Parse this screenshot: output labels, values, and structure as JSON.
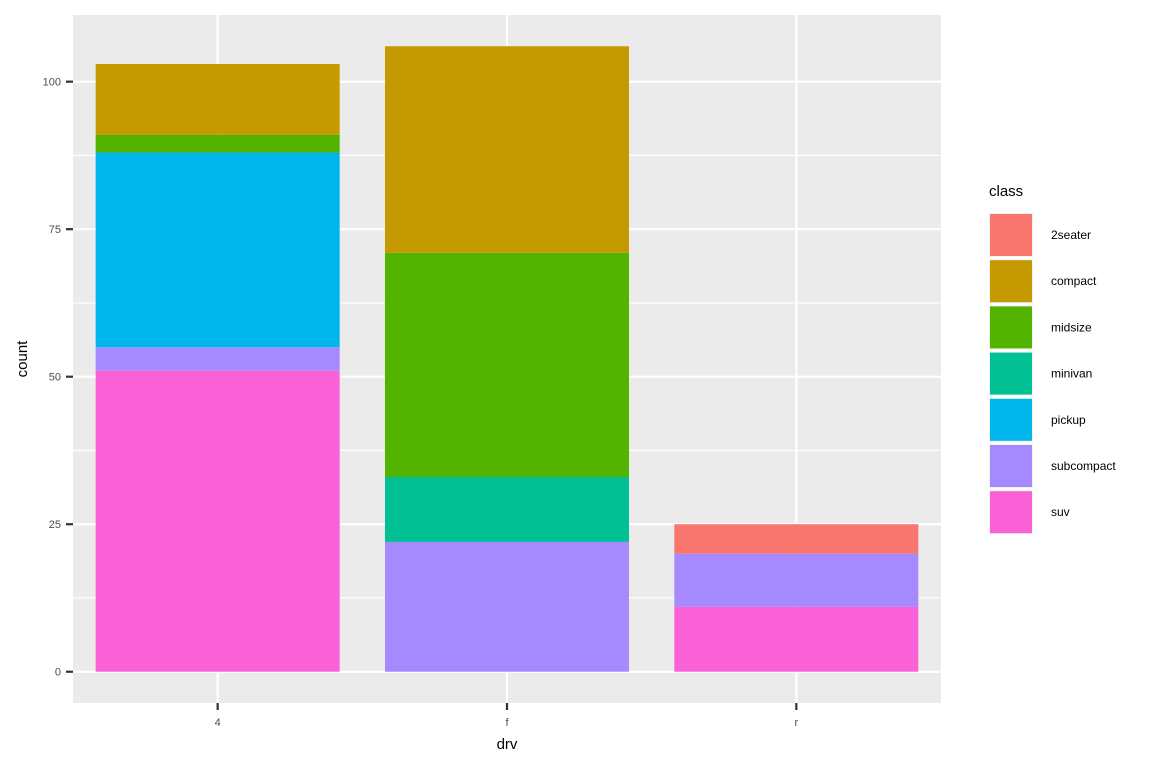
{
  "chart_data": {
    "type": "bar",
    "stacked": true,
    "categories": [
      "4",
      "f",
      "r"
    ],
    "series": [
      {
        "name": "2seater",
        "color": "#F8766D",
        "values": [
          0,
          0,
          5
        ]
      },
      {
        "name": "compact",
        "color": "#C49A00",
        "values": [
          12,
          35,
          0
        ]
      },
      {
        "name": "midsize",
        "color": "#53B400",
        "values": [
          3,
          38,
          0
        ]
      },
      {
        "name": "minivan",
        "color": "#00C094",
        "values": [
          0,
          11,
          0
        ]
      },
      {
        "name": "pickup",
        "color": "#00B6EB",
        "values": [
          33,
          0,
          0
        ]
      },
      {
        "name": "subcompact",
        "color": "#A58AFF",
        "values": [
          4,
          22,
          9
        ]
      },
      {
        "name": "suv",
        "color": "#FB61D7",
        "values": [
          51,
          0,
          11
        ]
      }
    ],
    "xlabel": "drv",
    "ylabel": "count",
    "ylim": [
      -5.3,
      111.3
    ],
    "yticks": [
      0,
      25,
      50,
      75,
      100
    ],
    "grid": true,
    "legend": {
      "title": "class",
      "position": "right"
    },
    "colors": {
      "panel_background": "#EBEBEB",
      "grid_line": "#FFFFFF",
      "tick_mark": "#333333"
    }
  }
}
